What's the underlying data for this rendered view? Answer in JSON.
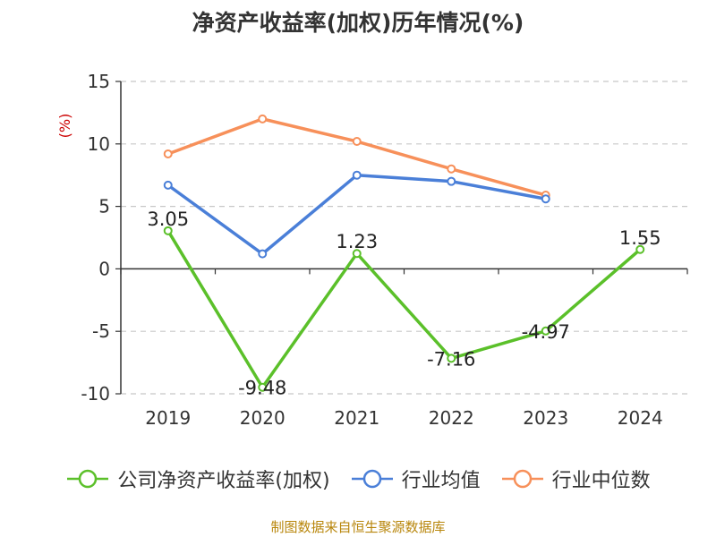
{
  "chart_data": {
    "type": "line",
    "title": "净资产收益率(加权)历年情况(%)",
    "ylabel": "(%)",
    "xlabel": "",
    "categories": [
      "2019",
      "2020",
      "2021",
      "2022",
      "2023",
      "2024"
    ],
    "ylim": [
      -10,
      15
    ],
    "yticks": [
      -10,
      -5,
      0,
      5,
      10,
      15
    ],
    "grid": true,
    "legend_position": "bottom",
    "series": [
      {
        "name": "公司净资产收益率(加权)",
        "color": "#5bc02a",
        "values": [
          3.05,
          -9.48,
          1.23,
          -7.16,
          -4.97,
          1.55
        ],
        "labels": [
          "3.05",
          "-9.48",
          "1.23",
          "-7.16",
          "-4.97",
          "1.55"
        ]
      },
      {
        "name": "行业均值",
        "color": "#4a7fd8",
        "values": [
          6.7,
          1.2,
          7.5,
          7.0,
          5.6,
          null
        ]
      },
      {
        "name": "行业中位数",
        "color": "#f7905a",
        "values": [
          9.2,
          12.0,
          10.2,
          8.0,
          5.9,
          null
        ]
      }
    ]
  },
  "source": "制图数据来自恒生聚源数据库"
}
